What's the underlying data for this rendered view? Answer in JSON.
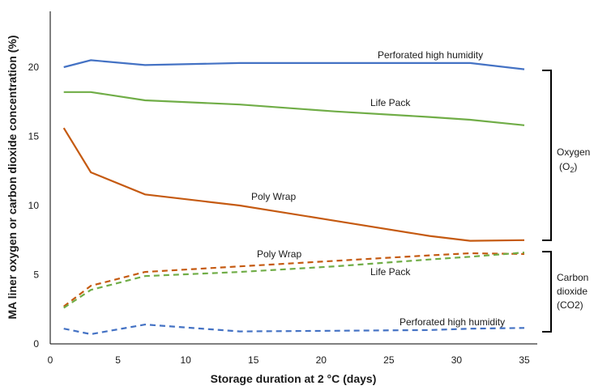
{
  "chart_data": {
    "type": "line",
    "xlabel": "Storage duration at 2 °C (days)",
    "ylabel": "MA liner oxygen or carbon dioxide concentration (%)",
    "xlim": [
      0,
      40
    ],
    "ylim": [
      0,
      25
    ],
    "xticks": [
      0,
      5,
      10,
      15,
      20,
      25,
      30,
      35
    ],
    "yticks": [
      0,
      5,
      10,
      15,
      20
    ],
    "grid": false,
    "colors": {
      "perforated": "#4472c4",
      "lifepack": "#70ad47",
      "polywrap": "#c55a11"
    },
    "series": [
      {
        "name": "Perforated high humidity",
        "gas": "oxygen",
        "style": "solid",
        "color_key": "perforated",
        "x": [
          1,
          3,
          7,
          14,
          21,
          28,
          31,
          35
        ],
        "y": [
          20.0,
          20.5,
          20.15,
          20.3,
          20.3,
          20.3,
          20.3,
          19.85
        ]
      },
      {
        "name": "Life Pack",
        "gas": "oxygen",
        "style": "solid",
        "color_key": "lifepack",
        "x": [
          1,
          3,
          7,
          14,
          21,
          28,
          31,
          35
        ],
        "y": [
          18.2,
          18.2,
          17.6,
          17.3,
          16.8,
          16.4,
          16.2,
          15.8
        ]
      },
      {
        "name": "Poly Wrap",
        "gas": "oxygen",
        "style": "solid",
        "color_key": "polywrap",
        "x": [
          1,
          3,
          7,
          14,
          21,
          28,
          31,
          35
        ],
        "y": [
          15.6,
          12.4,
          10.8,
          10.0,
          8.9,
          7.8,
          7.45,
          7.5
        ]
      },
      {
        "name": "Poly Wrap",
        "gas": "carbon dioxide",
        "style": "dashed",
        "color_key": "polywrap",
        "x": [
          1,
          3,
          7,
          14,
          21,
          28,
          31,
          35
        ],
        "y": [
          2.7,
          4.2,
          5.2,
          5.6,
          6.0,
          6.4,
          6.55,
          6.5
        ]
      },
      {
        "name": "Life Pack",
        "gas": "carbon dioxide",
        "style": "dashed",
        "color_key": "lifepack",
        "x": [
          1,
          3,
          7,
          14,
          21,
          28,
          31,
          35
        ],
        "y": [
          2.6,
          3.9,
          4.9,
          5.2,
          5.6,
          6.1,
          6.3,
          6.6
        ]
      },
      {
        "name": "Perforated high humidity",
        "gas": "carbon dioxide",
        "style": "dashed",
        "color_key": "perforated",
        "x": [
          1,
          3,
          7,
          14,
          21,
          28,
          31,
          35
        ],
        "y": [
          1.1,
          0.7,
          1.4,
          0.9,
          0.95,
          1.0,
          1.1,
          1.15
        ]
      }
    ],
    "annotations": {
      "perforated_o2": "Perforated high humidity",
      "lifepack_o2": "Life Pack",
      "polywrap_o2": "Poly Wrap",
      "polywrap_co2": "Poly Wrap",
      "lifepack_co2": "Life Pack",
      "perforated_co2": "Perforated high humidity"
    },
    "bracket_labels": {
      "oxygen_line1": "Oxygen",
      "oxygen_line2_prefix": "(O",
      "oxygen_line2_sub": "2",
      "oxygen_line2_suffix": ")",
      "co2_line1": "Carbon",
      "co2_line2": "dioxide",
      "co2_line3": "(CO2)"
    }
  }
}
